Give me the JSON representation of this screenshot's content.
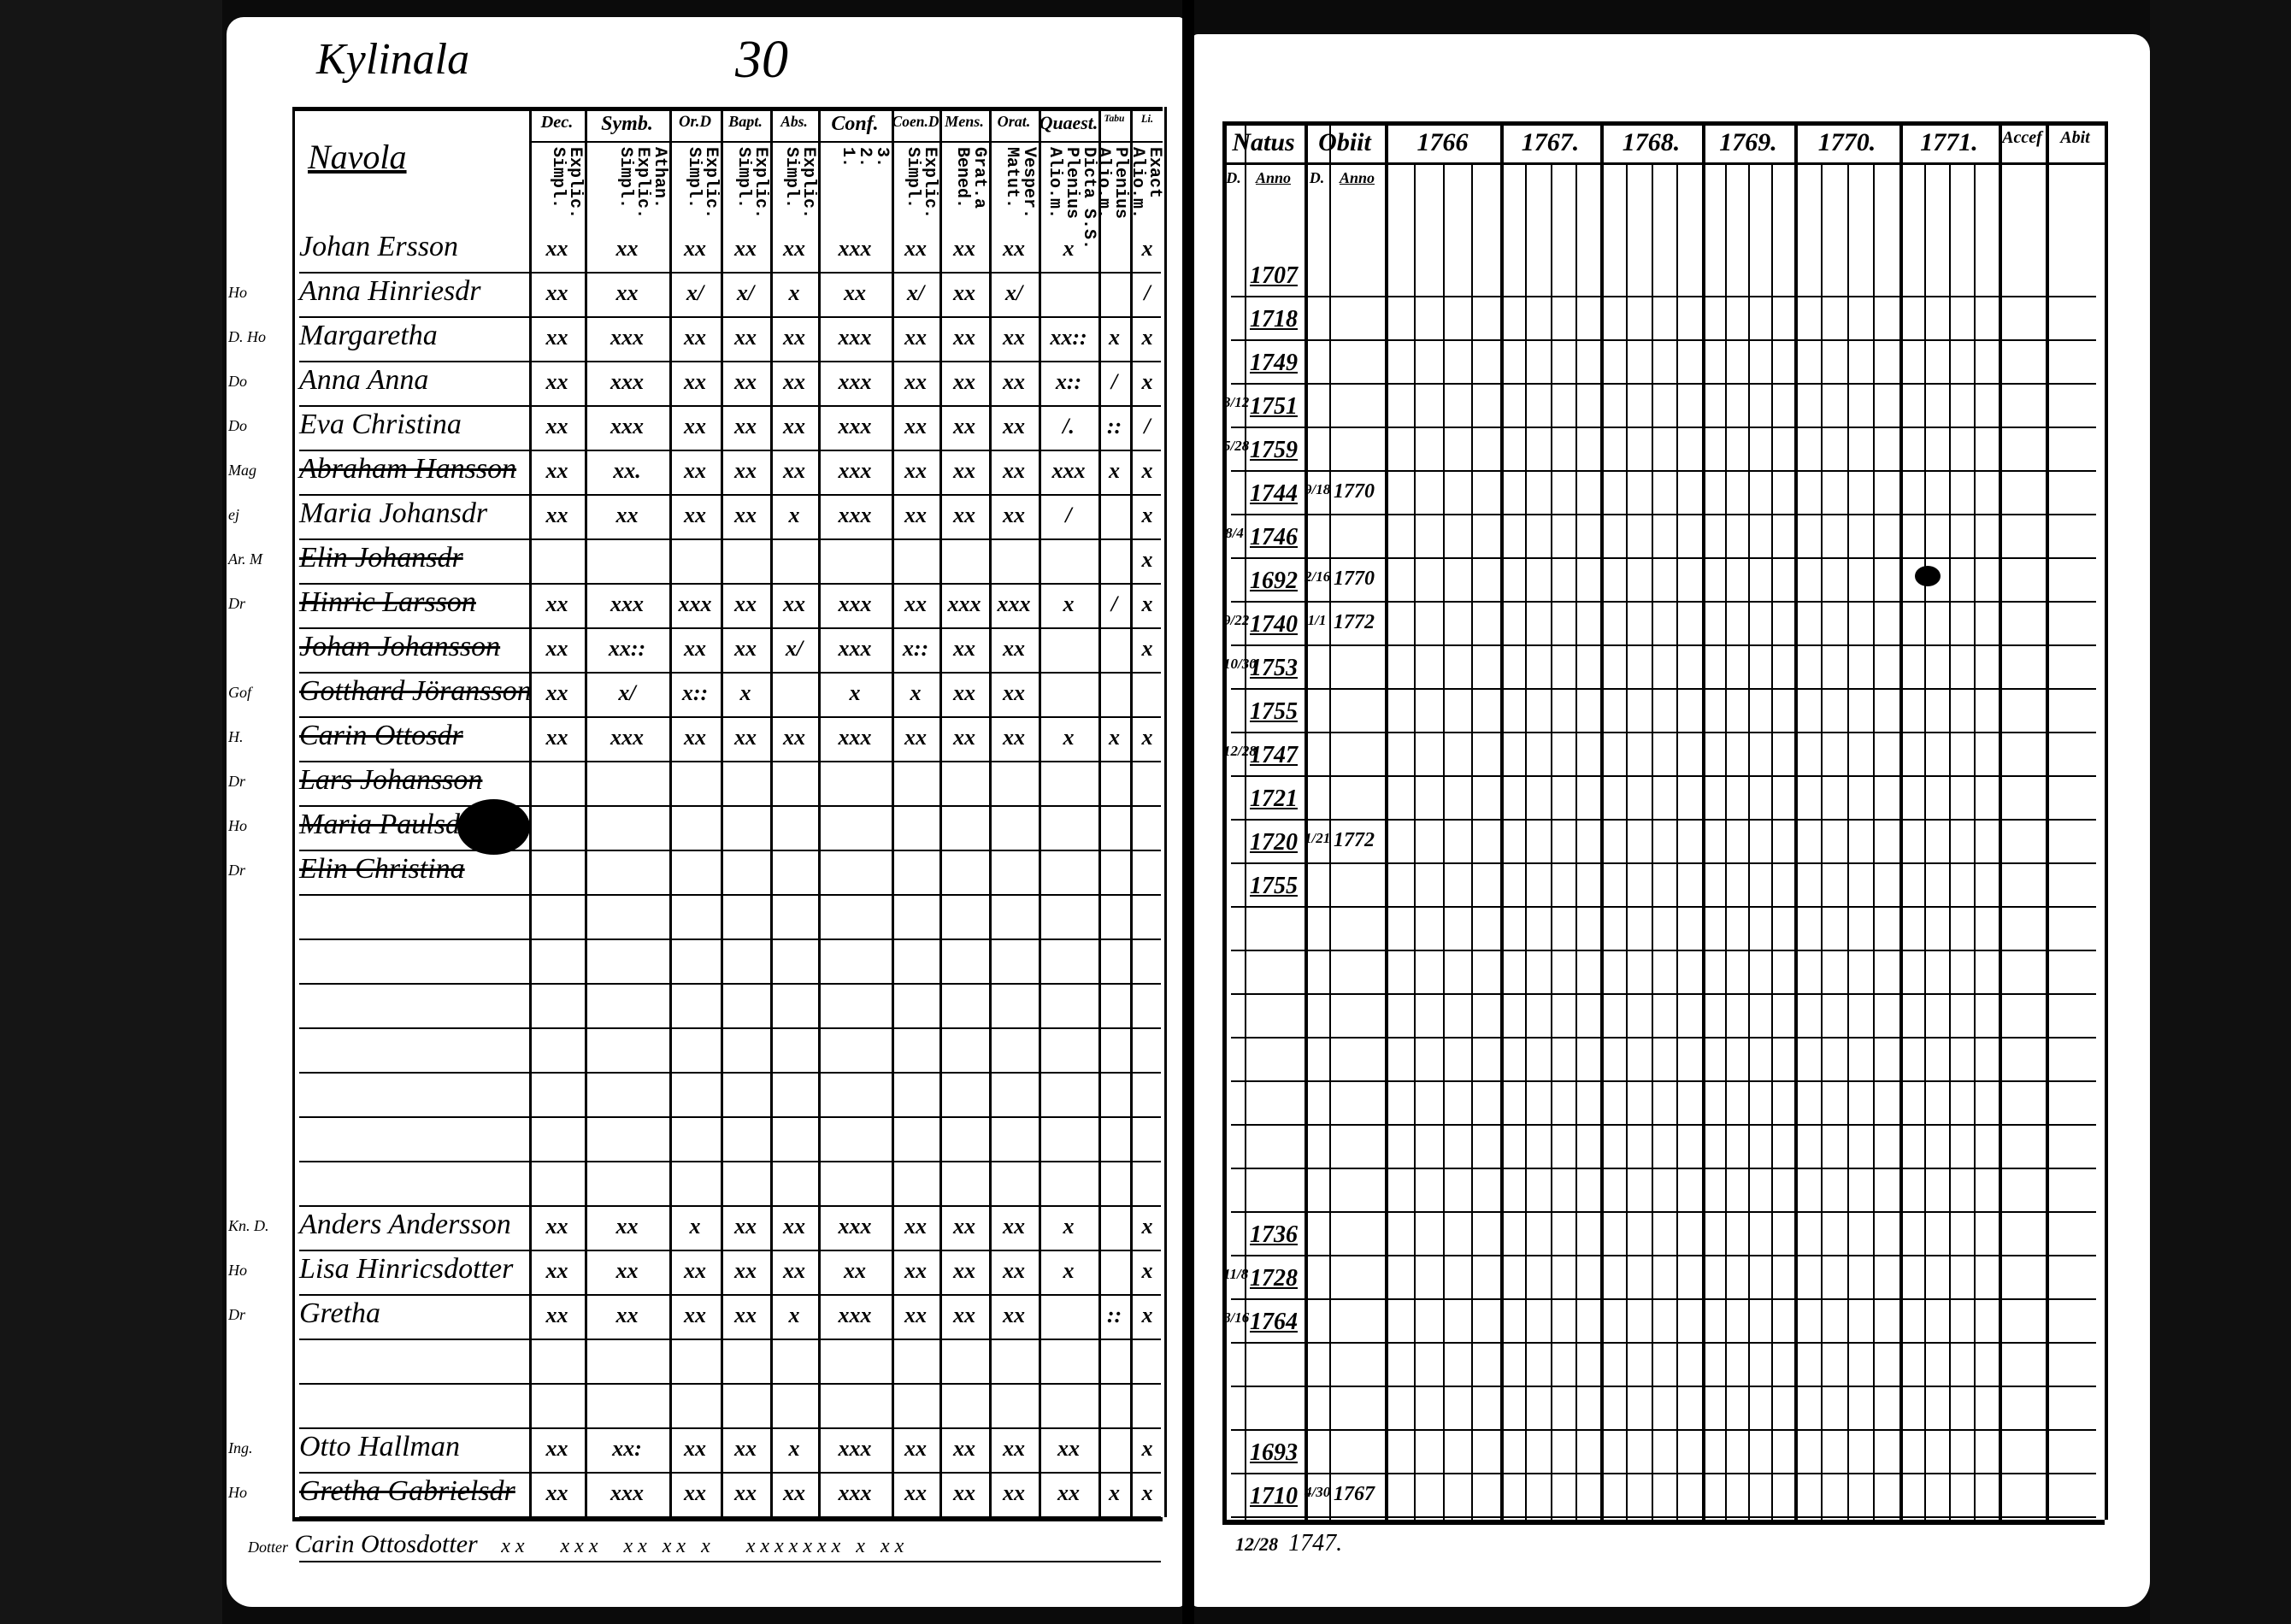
{
  "left_page": {
    "place": "Kylinala",
    "page_number": "30",
    "column_title": "Navola",
    "columns": [
      {
        "head": "Dec.",
        "sub": "Explic.\nSimpl."
      },
      {
        "head": "Symb.",
        "sub": "Athan.\nExplic.\nSimpl."
      },
      {
        "head": "Or.D",
        "sub": "Explic.\nSimpl."
      },
      {
        "head": "Bapt.",
        "sub": "Explic.\nSimpl."
      },
      {
        "head": "Abs.",
        "sub": "Explic.\nSimpl."
      },
      {
        "head": "Conf.",
        "sub": "3.\n2.\n1."
      },
      {
        "head": "Coen.D",
        "sub": "Explic.\nSimpl."
      },
      {
        "head": "Mens.",
        "sub": "Grat.a\nBened."
      },
      {
        "head": "Orat.",
        "sub": "Vesper.\nMatut."
      },
      {
        "head": "Quaest.",
        "sub": "Dicta S.S.\nPlenius\nAlio.m."
      },
      {
        "head": "Tabu",
        "sub": "Plenius\nAlio.m."
      },
      {
        "head": "Li.",
        "sub": "Exact\nAlio.m."
      }
    ],
    "rows": [
      {
        "row": 0,
        "role": "",
        "name": "Johan Ersson",
        "struck": false,
        "marks": [
          "xx",
          "xx",
          "xx",
          "xx",
          "xx",
          "xxx",
          "xx",
          "xx",
          "xx",
          "x",
          "",
          "x"
        ]
      },
      {
        "row": 1,
        "role": "Ho",
        "name": "Anna Hinriesdr",
        "struck": false,
        "marks": [
          "xx",
          "xx",
          "x/",
          "x/",
          "x",
          "xx",
          "x/",
          "xx",
          "x/",
          "",
          "",
          "/"
        ]
      },
      {
        "row": 2,
        "role": "D. Ho",
        "name": "Margaretha",
        "struck": false,
        "marks": [
          "xx",
          "xxx",
          "xx",
          "xx",
          "xx",
          "xxx",
          "xx",
          "xx",
          "xx",
          "xx::",
          "x",
          "x"
        ]
      },
      {
        "row": 3,
        "role": "Do",
        "name": "Anna Anna",
        "struck": false,
        "marks": [
          "xx",
          "xxx",
          "xx",
          "xx",
          "xx",
          "xxx",
          "xx",
          "xx",
          "xx",
          "x::",
          "/",
          "x"
        ]
      },
      {
        "row": 4,
        "role": "Do",
        "name": "Eva Christina",
        "struck": false,
        "marks": [
          "xx",
          "xxx",
          "xx",
          "xx",
          "xx",
          "xxx",
          "xx",
          "xx",
          "xx",
          "/.",
          "::",
          "/"
        ]
      },
      {
        "row": 5,
        "role": "Mag",
        "name": "Abraham Hansson",
        "struck": true,
        "marks": [
          "xx",
          "xx.",
          "xx",
          "xx",
          "xx",
          "xxx",
          "xx",
          "xx",
          "xx",
          "xxx",
          "x",
          "x"
        ]
      },
      {
        "row": 6,
        "role": "ej",
        "name": "Maria Johansdr",
        "struck": false,
        "marks": [
          "xx",
          "xx",
          "xx",
          "xx",
          "x",
          "xxx",
          "xx",
          "xx",
          "xx",
          "/",
          "",
          "x"
        ]
      },
      {
        "row": 7,
        "role": "Ar. M",
        "name": "Elin Johansdr",
        "struck": true,
        "marks": [
          "",
          "",
          "",
          "",
          "",
          "",
          "",
          "",
          "",
          "",
          "",
          "x"
        ]
      },
      {
        "row": 8,
        "role": "Dr",
        "name": "Hinric Larsson",
        "struck": true,
        "marks": [
          "xx",
          "xxx",
          "xxx",
          "xx",
          "xx",
          "xxx",
          "xx",
          "xxx",
          "xxx",
          "x",
          "/",
          "x"
        ]
      },
      {
        "row": 9,
        "role": "",
        "name": "Johan Johansson",
        "struck": true,
        "marks": [
          "xx",
          "xx::",
          "xx",
          "xx",
          "x/",
          "xxx",
          "x::",
          "xx",
          "xx",
          "",
          "",
          "x"
        ]
      },
      {
        "row": 10,
        "role": "Gof",
        "name": "Gotthard Jöransson",
        "struck": true,
        "marks": [
          "xx",
          "x/",
          "x::",
          "x",
          "",
          "x",
          "x",
          "xx",
          "xx",
          "",
          "",
          ""
        ]
      },
      {
        "row": 11,
        "role": "H.",
        "name": "Carin Ottosdr",
        "struck": true,
        "marks": [
          "xx",
          "xxx",
          "xx",
          "xx",
          "xx",
          "xxx",
          "xx",
          "xx",
          "xx",
          "x",
          "x",
          "x"
        ]
      },
      {
        "row": 12,
        "role": "Dr",
        "name": "Lars Johansson",
        "struck": true,
        "marks": [
          "",
          "",
          "",
          "",
          "",
          "",
          "",
          "",
          "",
          "",
          "",
          ""
        ]
      },
      {
        "row": 13,
        "role": "Ho",
        "name": "Maria Paulsdr",
        "struck": true,
        "marks": [
          "",
          "",
          "",
          "",
          "",
          "",
          "",
          "",
          "",
          "",
          "",
          ""
        ]
      },
      {
        "row": 14,
        "role": "Dr",
        "name": "Elin Christina",
        "struck": true,
        "marks": [
          "",
          "",
          "",
          "",
          "",
          "",
          "",
          "",
          "",
          "",
          "",
          ""
        ]
      },
      {
        "row": 22,
        "role": "Kn. D.",
        "name": "Anders Andersson",
        "struck": false,
        "marks": [
          "xx",
          "xx",
          "x",
          "xx",
          "xx",
          "xxx",
          "xx",
          "xx",
          "xx",
          "x",
          "",
          "x"
        ]
      },
      {
        "row": 23,
        "role": "Ho",
        "name": "Lisa Hinricsdotter",
        "struck": false,
        "marks": [
          "xx",
          "xx",
          "xx",
          "xx",
          "xx",
          "xx",
          "xx",
          "xx",
          "xx",
          "x",
          "",
          "x"
        ]
      },
      {
        "row": 24,
        "role": "Dr",
        "name": "Gretha",
        "struck": false,
        "marks": [
          "xx",
          "xx",
          "xx",
          "xx",
          "x",
          "xxx",
          "xx",
          "xx",
          "xx",
          "",
          "::",
          "x"
        ]
      },
      {
        "row": 27,
        "role": "Ing.",
        "name": "Otto Hallman",
        "struck": false,
        "marks": [
          "xx",
          "xx:",
          "xx",
          "xx",
          "x",
          "xxx",
          "xx",
          "xx",
          "xx",
          "xx",
          "",
          "x"
        ]
      },
      {
        "row": 28,
        "role": "Ho",
        "name": "Gretha Gabrielsdr",
        "struck": true,
        "marks": [
          "xx",
          "xxx",
          "xx",
          "xx",
          "xx",
          "xxx",
          "xx",
          "xx",
          "xx",
          "xx",
          "x",
          "x"
        ]
      }
    ],
    "footer": {
      "role": "Dotter",
      "name": "Carin Ottosdotter",
      "marks": "xx   xxx  xx xx x   xxxxxxx x xx"
    }
  },
  "right_page": {
    "columns": [
      {
        "head": "Natus",
        "subs": [
          "D.",
          "Anno"
        ]
      },
      {
        "head": "Obiit",
        "subs": [
          "D.",
          "Anno"
        ]
      },
      {
        "head": "1766"
      },
      {
        "head": "1767."
      },
      {
        "head": "1768."
      },
      {
        "head": "1769."
      },
      {
        "head": "1770."
      },
      {
        "head": "1771."
      },
      {
        "head": "Accef"
      },
      {
        "head": "Abit"
      }
    ],
    "rows": [
      {
        "row": 0,
        "natus_d": "",
        "natus_anno": "1707",
        "obiit_d": "",
        "obiit_anno": ""
      },
      {
        "row": 1,
        "natus_d": "",
        "natus_anno": "1718",
        "obiit_d": "",
        "obiit_anno": ""
      },
      {
        "row": 2,
        "natus_d": "",
        "natus_anno": "1749",
        "obiit_d": "",
        "obiit_anno": ""
      },
      {
        "row": 3,
        "natus_d": "3/12",
        "natus_anno": "1751",
        "obiit_d": "",
        "obiit_anno": ""
      },
      {
        "row": 4,
        "natus_d": "5/28",
        "natus_anno": "1759",
        "obiit_d": "",
        "obiit_anno": ""
      },
      {
        "row": 5,
        "natus_d": "",
        "natus_anno": "1744",
        "obiit_d": "9/18",
        "obiit_anno": "1770"
      },
      {
        "row": 6,
        "natus_d": "8/4",
        "natus_anno": "1746",
        "obiit_d": "",
        "obiit_anno": ""
      },
      {
        "row": 7,
        "natus_d": "",
        "natus_anno": "1692",
        "obiit_d": "2/16",
        "obiit_anno": "1770"
      },
      {
        "row": 8,
        "natus_d": "9/22",
        "natus_anno": "1740",
        "obiit_d": "1/1",
        "obiit_anno": "1772"
      },
      {
        "row": 9,
        "natus_d": "10/30",
        "natus_anno": "1753",
        "obiit_d": "",
        "obiit_anno": ""
      },
      {
        "row": 10,
        "natus_d": "",
        "natus_anno": "1755",
        "obiit_d": "",
        "obiit_anno": ""
      },
      {
        "row": 11,
        "natus_d": "12/28",
        "natus_anno": "1747",
        "obiit_d": "",
        "obiit_anno": ""
      },
      {
        "row": 12,
        "natus_d": "",
        "natus_anno": "1721",
        "obiit_d": "",
        "obiit_anno": ""
      },
      {
        "row": 13,
        "natus_d": "",
        "natus_anno": "1720",
        "obiit_d": "1/21",
        "obiit_anno": "1772"
      },
      {
        "row": 14,
        "natus_d": "",
        "natus_anno": "1755",
        "obiit_d": "",
        "obiit_anno": ""
      },
      {
        "row": 22,
        "natus_d": "",
        "natus_anno": "1736",
        "obiit_d": "",
        "obiit_anno": ""
      },
      {
        "row": 23,
        "natus_d": "11/8",
        "natus_anno": "1728",
        "obiit_d": "",
        "obiit_anno": ""
      },
      {
        "row": 24,
        "natus_d": "8/16",
        "natus_anno": "1764",
        "obiit_d": "",
        "obiit_anno": ""
      },
      {
        "row": 27,
        "natus_d": "",
        "natus_anno": "1693",
        "obiit_d": "",
        "obiit_anno": ""
      },
      {
        "row": 28,
        "natus_d": "",
        "natus_anno": "1710",
        "obiit_d": "4/30",
        "obiit_anno": "1767"
      }
    ],
    "footer": {
      "natus_d": "12/28",
      "natus_anno": "1747."
    }
  }
}
